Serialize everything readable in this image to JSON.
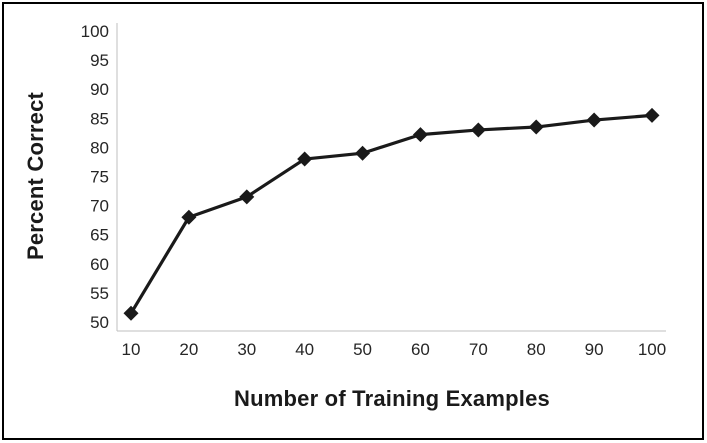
{
  "chart_data": {
    "type": "line",
    "x": [
      10,
      20,
      30,
      40,
      50,
      60,
      70,
      80,
      90,
      100
    ],
    "values": [
      51.5,
      68,
      71.5,
      78,
      79,
      82.2,
      83,
      83.5,
      84.7,
      85.5
    ],
    "title": "",
    "xlabel": "Number of Training Examples",
    "ylabel": "Percent Correct",
    "xlim": [
      10,
      100
    ],
    "ylim": [
      50,
      100
    ],
    "xticks": [
      10,
      20,
      30,
      40,
      50,
      60,
      70,
      80,
      90,
      100
    ],
    "yticks": [
      50,
      55,
      60,
      65,
      70,
      75,
      80,
      85,
      90,
      95,
      100
    ],
    "grid": false,
    "legend": false,
    "marker": "diamond",
    "series_name": "Percent Correct",
    "line_color": "#1a1a1a",
    "marker_color": "#1a1a1a",
    "axis_line_color": "#bfbfbf",
    "text_color": "#262626",
    "frame_border_color": "#000000",
    "background_color": "#ffffff"
  }
}
